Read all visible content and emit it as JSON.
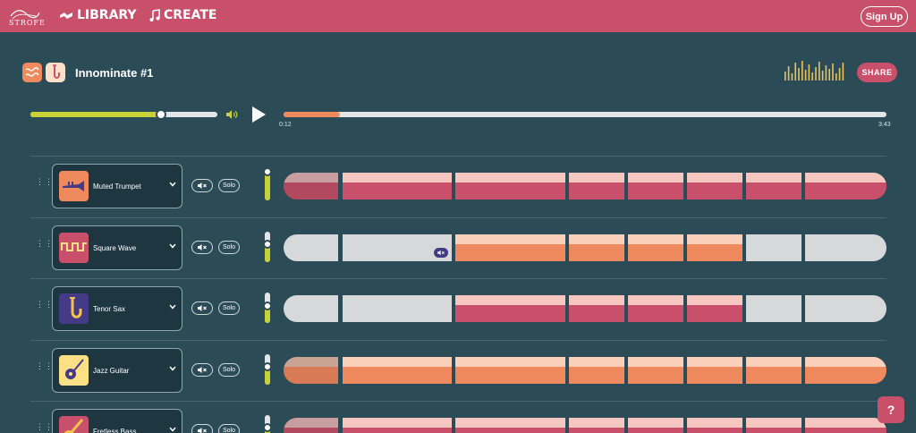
{
  "header": {
    "logo_text": "STROFE",
    "nav_library": "LIBRARY",
    "nav_create": "CREATE",
    "signup_label": "Sign Up"
  },
  "song": {
    "title": "Innominate #1",
    "share_label": "SHARE"
  },
  "transport": {
    "volume_level": 0.7,
    "current_time": "0:12",
    "total_time": "3:43",
    "progress": 0.093
  },
  "controls": {
    "solo_label": "Solo"
  },
  "tracks": [
    {
      "name": "Muted Trumpet",
      "icon": "trumpet-icon",
      "icon_bg": "#ef8a5e",
      "volume": 0.95,
      "color": "pink",
      "segments": [
        "dim",
        "on",
        "on",
        "on",
        "on",
        "on",
        "on",
        "on"
      ]
    },
    {
      "name": "Square Wave",
      "icon": "square-wave-icon",
      "icon_bg": "#c9506b",
      "volume": 0.6,
      "color": "orange",
      "segments": [
        "off",
        "off-muted",
        "on",
        "on",
        "on",
        "on",
        "off",
        "off"
      ]
    },
    {
      "name": "Tenor Sax",
      "icon": "saxophone-icon",
      "icon_bg": "#453a86",
      "volume": 0.55,
      "color": "pink",
      "segments": [
        "off",
        "off",
        "on",
        "on",
        "on",
        "on",
        "off",
        "off"
      ]
    },
    {
      "name": "Jazz Guitar",
      "icon": "guitar-icon",
      "icon_bg": "#fde085",
      "volume": 0.6,
      "color": "orange",
      "segments": [
        "dim",
        "on",
        "on",
        "on",
        "on",
        "on",
        "on",
        "on"
      ]
    },
    {
      "name": "Fretless Bass",
      "icon": "bass-icon",
      "icon_bg": "#c9506b",
      "volume": 0.6,
      "color": "pink",
      "segments": [
        "dim",
        "on",
        "on",
        "on",
        "on",
        "on",
        "on",
        "on"
      ]
    }
  ],
  "colors": {
    "brand": "#c9506b",
    "background": "#2b4b57",
    "accent_lime": "#c8d136",
    "accent_orange": "#ef8a5e",
    "segment_off": "#d6d8d9"
  },
  "help_label": "?"
}
